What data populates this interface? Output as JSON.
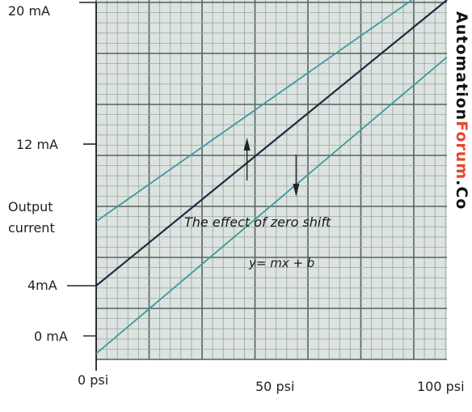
{
  "chart_data": {
    "type": "line",
    "xlabel": "",
    "ylabel": "Output current",
    "x_ticks": [
      "0 psi",
      "50 psi",
      "100 psi"
    ],
    "x_tick_values": [
      0,
      50,
      100
    ],
    "y_ticks": [
      "0 mA",
      "4mA",
      "12 mA",
      "20 mA"
    ],
    "y_tick_values": [
      0,
      4,
      12,
      20
    ],
    "xlim": [
      0,
      100
    ],
    "grid": true,
    "series": [
      {
        "color": "#3a9aa0",
        "points": [
          [
            0,
            7.6
          ],
          [
            90,
            20
          ]
        ]
      },
      {
        "color": "#1d2b44",
        "points": [
          [
            0,
            4
          ],
          [
            100,
            20
          ]
        ]
      },
      {
        "color": "#3a9aa0",
        "points": [
          [
            0,
            0.2
          ],
          [
            100,
            16.8
          ]
        ]
      }
    ],
    "annotations": [
      "The effect of zero shift",
      "y= mx + b"
    ],
    "arrows": [
      {
        "direction": "up",
        "x": 43
      },
      {
        "direction": "down",
        "x": 57
      }
    ]
  },
  "watermark": {
    "part1": "Automation",
    "part2": "Forum",
    "part3": ".Co"
  },
  "colors": {
    "paper": "#dde3e0",
    "grid_minor": "#9aaba3",
    "grid_major": "#54645c",
    "teal": "#3a9aa0",
    "navy": "#1d2b44"
  }
}
